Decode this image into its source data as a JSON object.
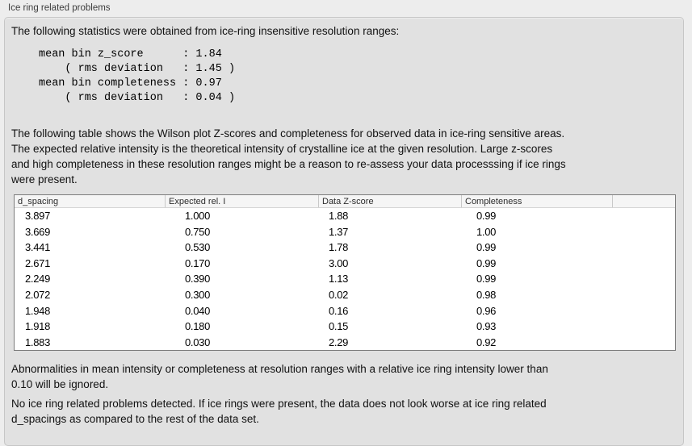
{
  "panel": {
    "title": "Ice ring related problems"
  },
  "intro": "The following statistics were obtained from ice-ring insensitive resolution ranges:",
  "stats": {
    "lines": [
      "mean bin z_score      : 1.84",
      "    ( rms deviation   : 1.45 )",
      "mean bin completeness : 0.97",
      "    ( rms deviation   : 0.04 )"
    ],
    "mean_bin_z_score": "1.84",
    "z_score_rms_deviation": "1.45",
    "mean_bin_completeness": "0.97",
    "completeness_rms_deviation": "0.04"
  },
  "description": "The following table shows the Wilson plot Z-scores and completeness for observed data in ice-ring sensitive areas.\nThe expected relative intensity is the theoretical intensity of crystalline ice at the given resolution. Large z-scores\nand high completeness in these resolution ranges might be a reason to re-assess your data processsing if ice rings\nwere present.",
  "table": {
    "columns": [
      "d_spacing",
      "Expected rel. I",
      "Data Z-score",
      "Completeness",
      ""
    ],
    "rows": [
      [
        "3.897",
        "1.000",
        "1.88",
        "0.99"
      ],
      [
        "3.669",
        "0.750",
        "1.37",
        "1.00"
      ],
      [
        "3.441",
        "0.530",
        "1.78",
        "0.99"
      ],
      [
        "2.671",
        "0.170",
        "3.00",
        "0.99"
      ],
      [
        "2.249",
        "0.390",
        "1.13",
        "0.99"
      ],
      [
        "2.072",
        "0.300",
        "0.02",
        "0.98"
      ],
      [
        "1.948",
        "0.040",
        "0.16",
        "0.96"
      ],
      [
        "1.918",
        "0.180",
        "0.15",
        "0.93"
      ],
      [
        "1.883",
        "0.030",
        "2.29",
        "0.92"
      ]
    ]
  },
  "notes": {
    "ignore_rule": "Abnormalities in mean intensity or completeness at resolution ranges with a relative ice ring intensity lower than\n0.10 will be ignored.",
    "conclusion": "No ice ring related problems detected. If ice rings were present, the data does not look worse at ice ring related\nd_spacings as compared to the rest of the data set."
  },
  "colors": {
    "window_background": "#ededed",
    "panel_background": "#e1e1e1",
    "table_background": "#ffffff",
    "text": "#111111"
  }
}
